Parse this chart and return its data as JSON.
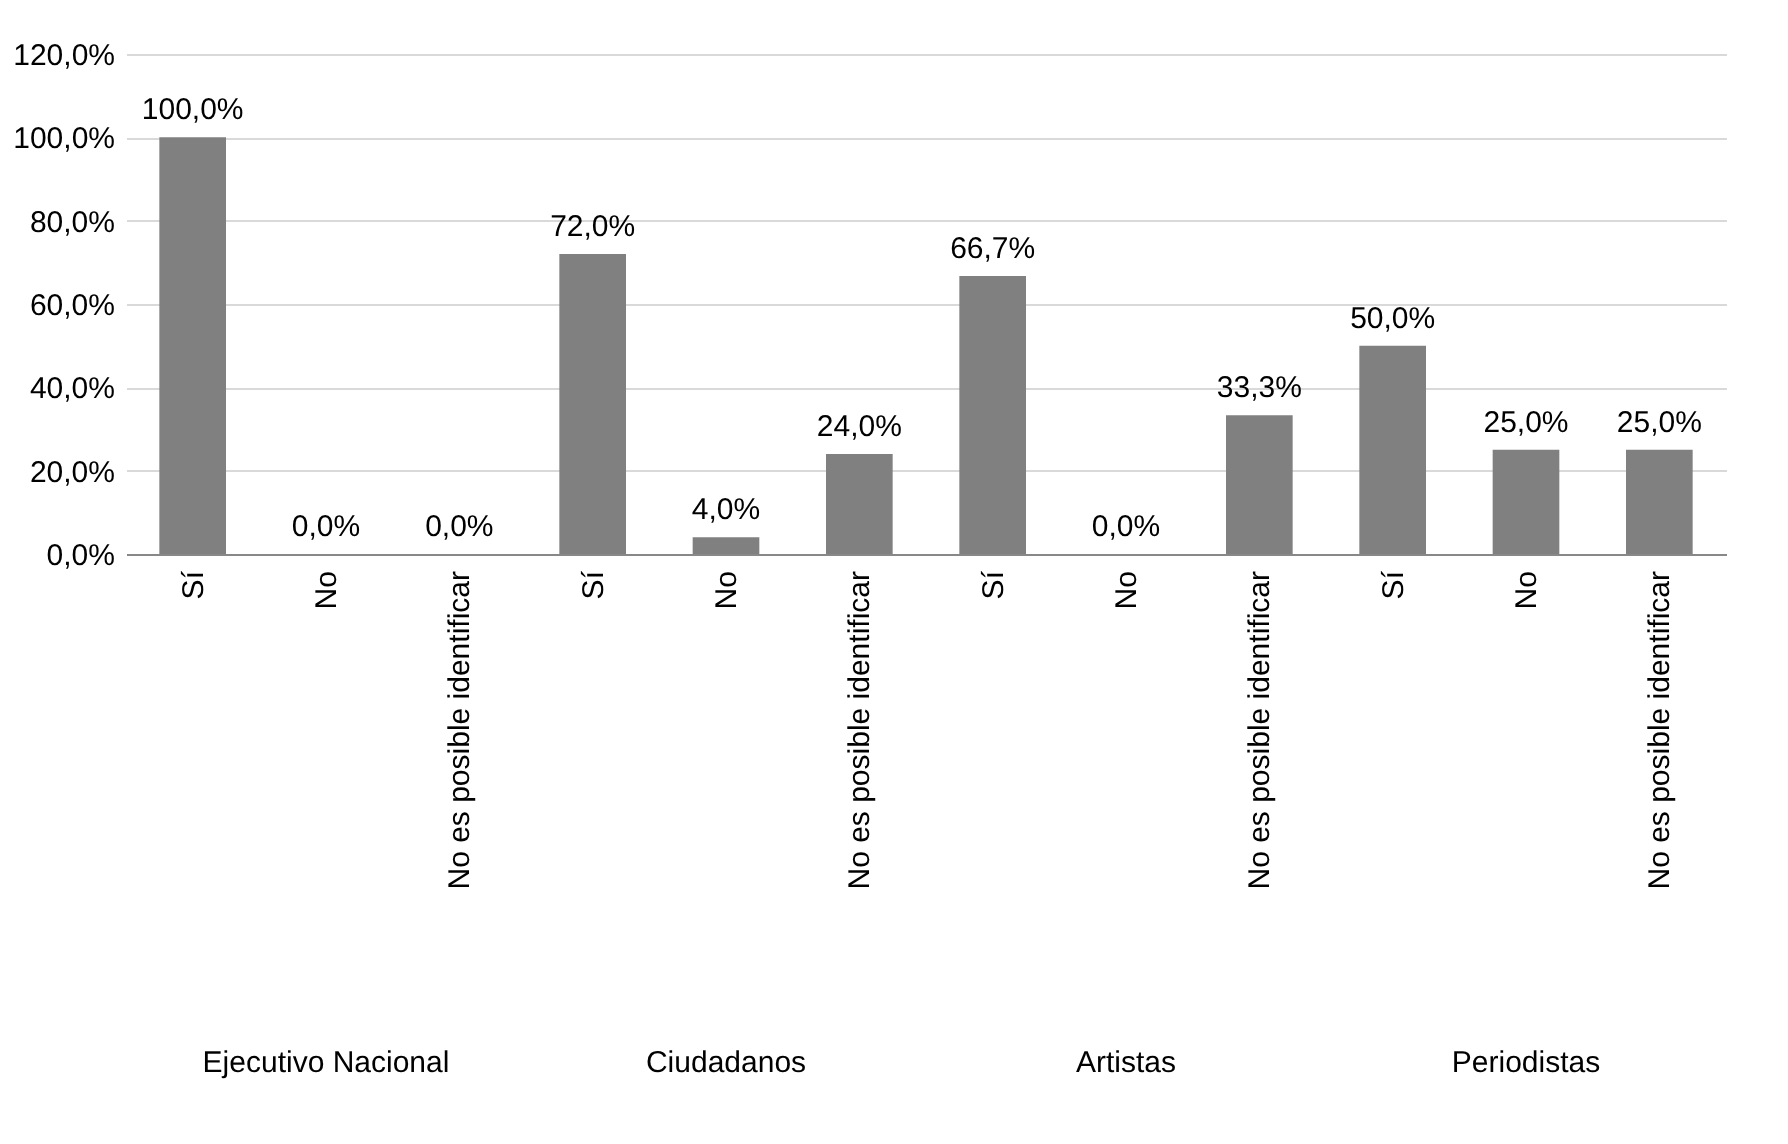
{
  "chart_data": {
    "type": "bar",
    "categories": [
      "Sí",
      "No",
      "No es posible identificar",
      "Sí",
      "No",
      "No es posible identificar",
      "Sí",
      "No",
      "No es posible identificar",
      "Sí",
      "No",
      "No es posible identificar"
    ],
    "values": [
      100,
      0,
      0,
      72,
      4,
      24,
      66.7,
      0,
      33.3,
      50,
      25,
      25
    ],
    "value_labels": [
      "100,0%",
      "0,0%",
      "0,0%",
      "72,0%",
      "4,0%",
      "24,0%",
      "66,7%",
      "0,0%",
      "33,3%",
      "50,0%",
      "25,0%",
      "25,0%"
    ],
    "color": "#808080",
    "ylim": [
      0,
      120
    ],
    "yticks": [
      {
        "value": 0,
        "label": "0,0%"
      },
      {
        "value": 20,
        "label": "20,0%"
      },
      {
        "value": 40,
        "label": "40,0%"
      },
      {
        "value": 60,
        "label": "60,0%"
      },
      {
        "value": 80,
        "label": "80,0%"
      },
      {
        "value": 100,
        "label": "100,0%"
      },
      {
        "value": 120,
        "label": "120,0%"
      }
    ],
    "grid": "y",
    "annotations": [
      "Ejecutivo Nacional",
      "Ciudadanos",
      "Artistas",
      "Periodistas"
    ]
  }
}
